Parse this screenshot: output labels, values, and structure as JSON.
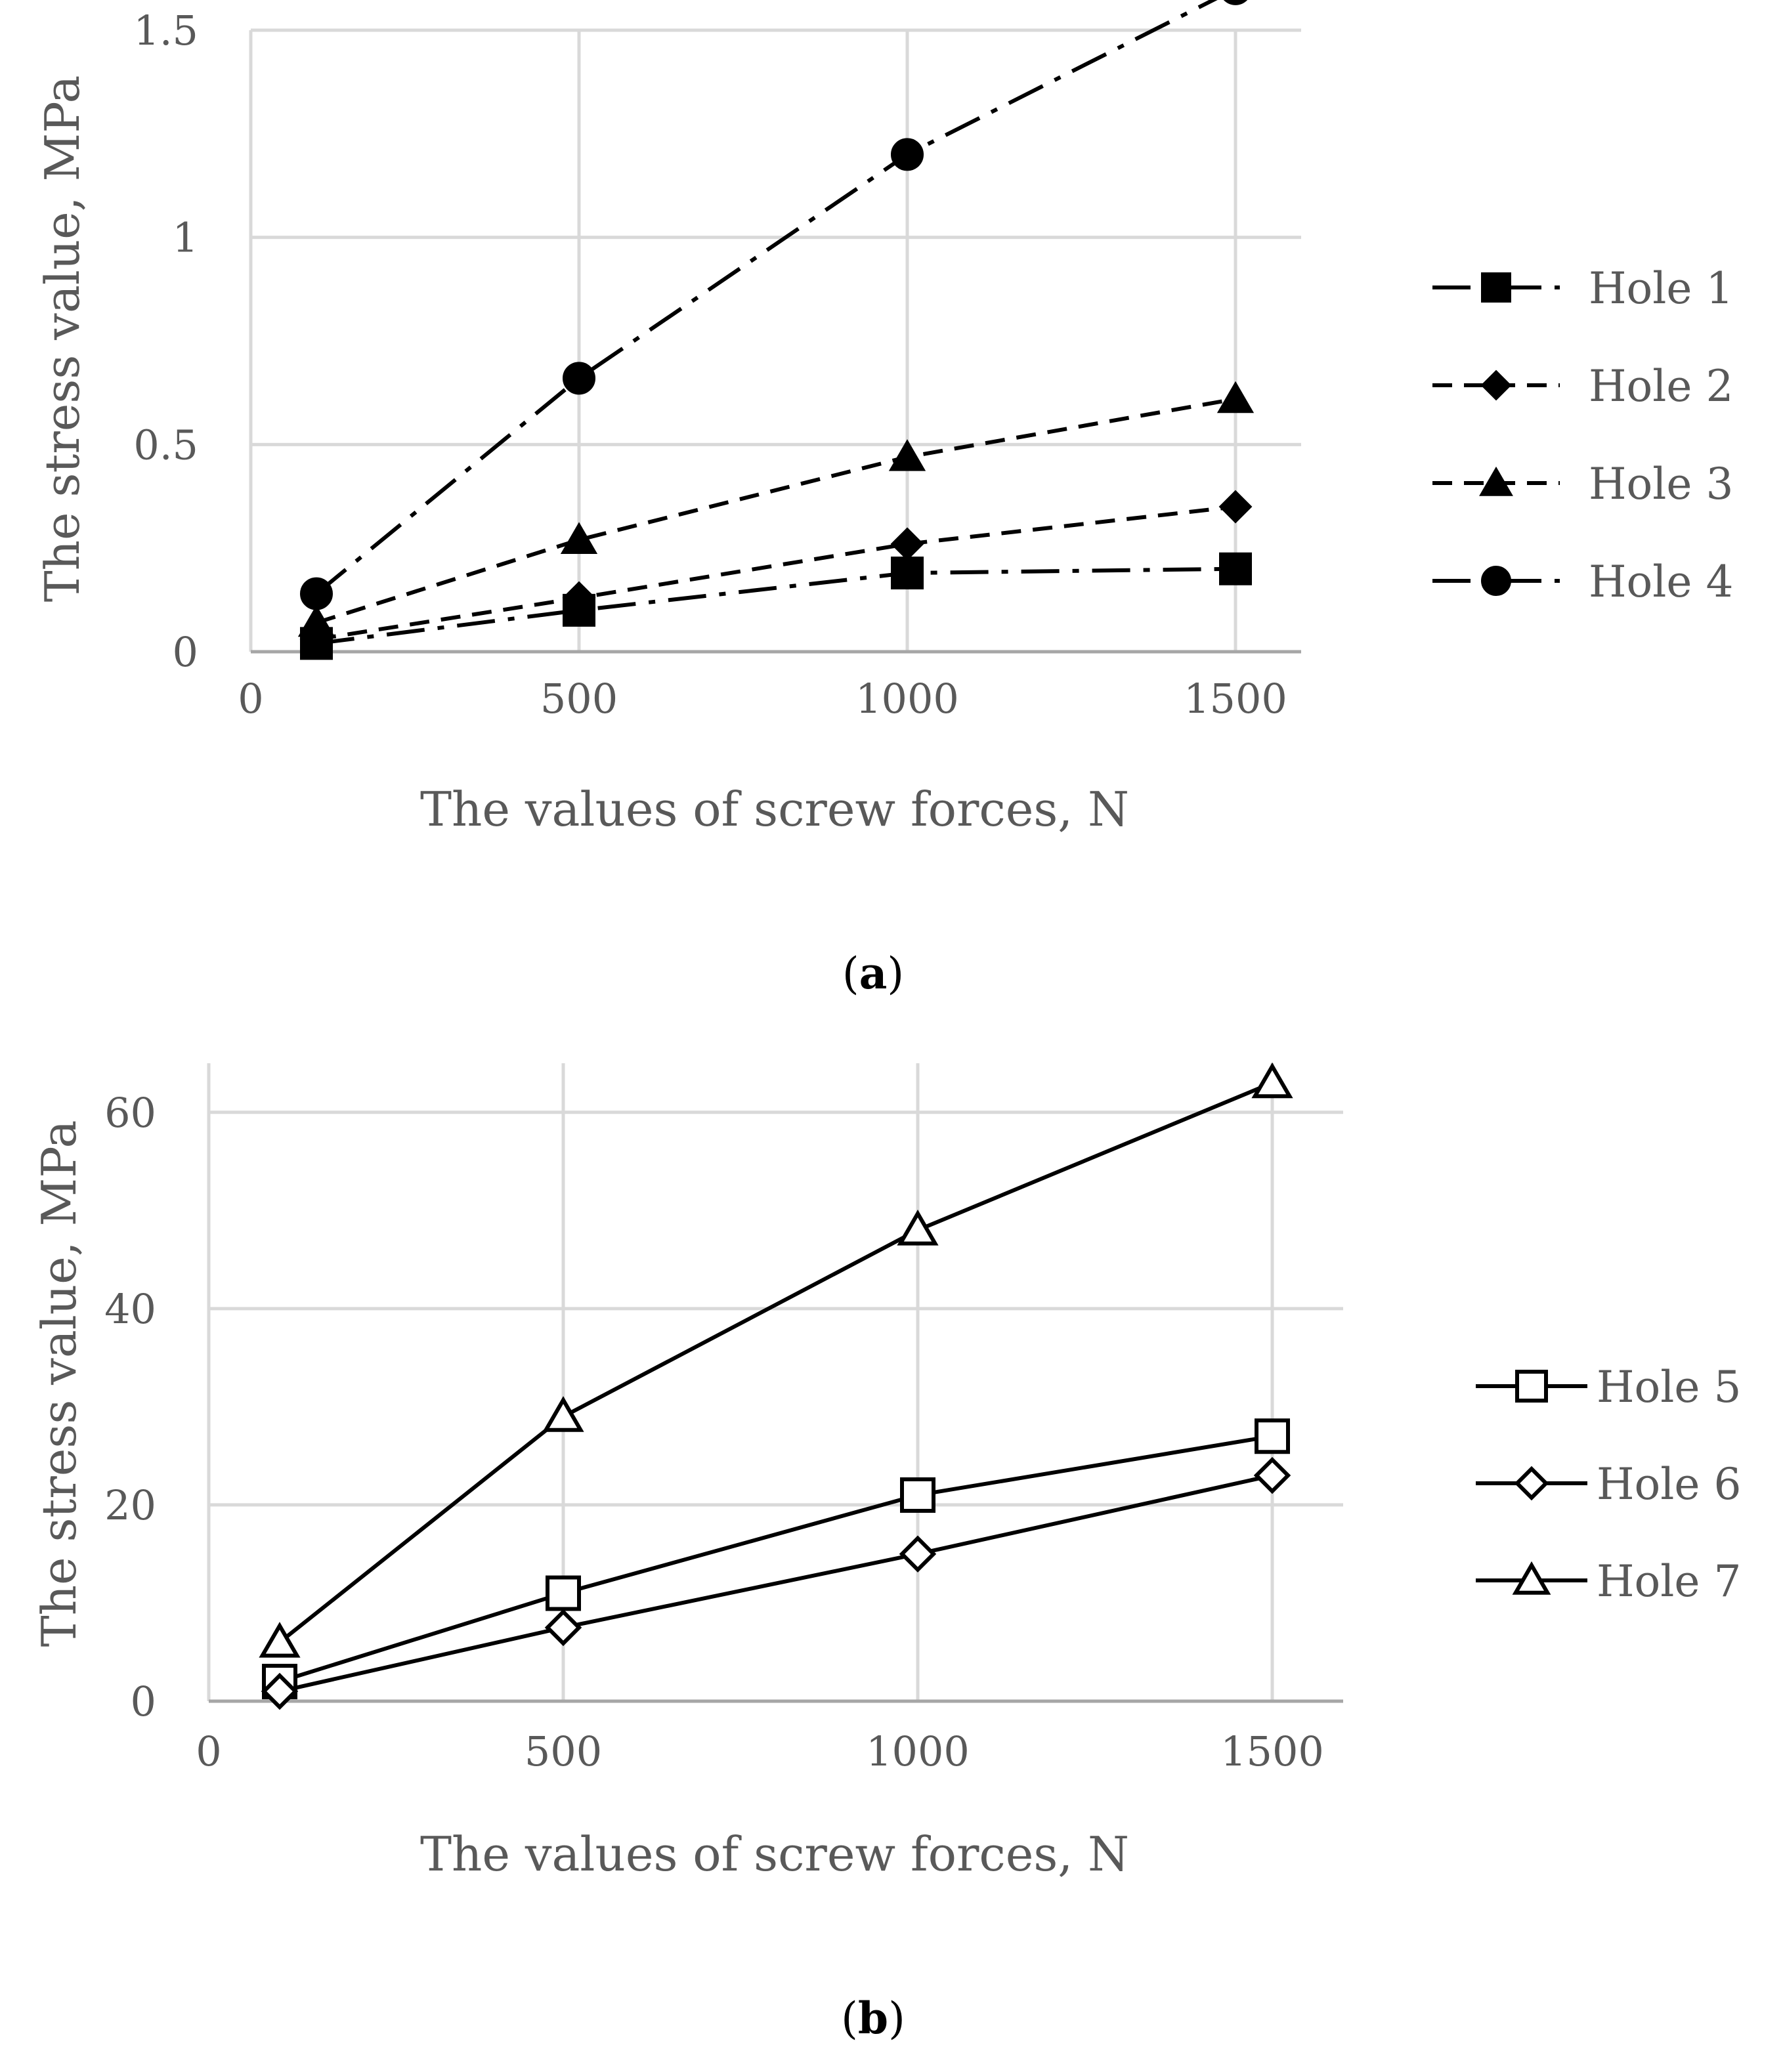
{
  "chart_data": [
    {
      "type": "line",
      "panel_label": "a",
      "xlabel": "The values of screw forces, N",
      "ylabel": "The stress value, MPa",
      "xlim": [
        0,
        1600
      ],
      "ylim": [
        0,
        1.5
      ],
      "x_ticks": [
        0,
        500,
        1000,
        1500
      ],
      "x_tick_labels": [
        "0",
        "500",
        "1000",
        "1500"
      ],
      "y_ticks": [
        0,
        0.5,
        1,
        1.5
      ],
      "y_tick_labels": [
        "0",
        "0.5",
        "1",
        "1.5"
      ],
      "grid": true,
      "legend_position": "right",
      "x": [
        100,
        500,
        1000,
        1500
      ],
      "series": [
        {
          "name": "Hole 1",
          "values": [
            0.02,
            0.1,
            0.19,
            0.2
          ],
          "marker": "square",
          "filled": true,
          "dash": "dashdot"
        },
        {
          "name": "Hole 2",
          "values": [
            0.03,
            0.13,
            0.26,
            0.35
          ],
          "marker": "diamond",
          "filled": true,
          "dash": "dash"
        },
        {
          "name": "Hole 3",
          "values": [
            0.07,
            0.27,
            0.47,
            0.61
          ],
          "marker": "triangle",
          "filled": true,
          "dash": "dash"
        },
        {
          "name": "Hole 4",
          "values": [
            0.14,
            0.66,
            1.2,
            1.6
          ],
          "marker": "circle",
          "filled": true,
          "dash": "dashdot"
        }
      ]
    },
    {
      "type": "line",
      "panel_label": "b",
      "xlabel": "The values of screw forces, N",
      "ylabel": "The stress value, MPa",
      "xlim": [
        0,
        1600
      ],
      "ylim": [
        0,
        65
      ],
      "x_ticks": [
        0,
        500,
        1000,
        1500
      ],
      "x_tick_labels": [
        "0",
        "500",
        "1000",
        "1500"
      ],
      "y_ticks": [
        0,
        20,
        40,
        60
      ],
      "y_tick_labels": [
        "0",
        "20",
        "40",
        "60"
      ],
      "grid": true,
      "legend_position": "right",
      "x": [
        100,
        500,
        1000,
        1500
      ],
      "series": [
        {
          "name": "Hole 5",
          "values": [
            2,
            11,
            21,
            27
          ],
          "marker": "square",
          "filled": false,
          "dash": "solid"
        },
        {
          "name": "Hole 6",
          "values": [
            1,
            7.5,
            15,
            23
          ],
          "marker": "diamond",
          "filled": false,
          "dash": "solid"
        },
        {
          "name": "Hole 7",
          "values": [
            6,
            29,
            48,
            63
          ],
          "marker": "triangle",
          "filled": false,
          "dash": "solid"
        }
      ]
    }
  ],
  "colors": {
    "line": "#000000",
    "grid": "#d9d9d9",
    "text": "#595959",
    "caption": "#000000"
  }
}
